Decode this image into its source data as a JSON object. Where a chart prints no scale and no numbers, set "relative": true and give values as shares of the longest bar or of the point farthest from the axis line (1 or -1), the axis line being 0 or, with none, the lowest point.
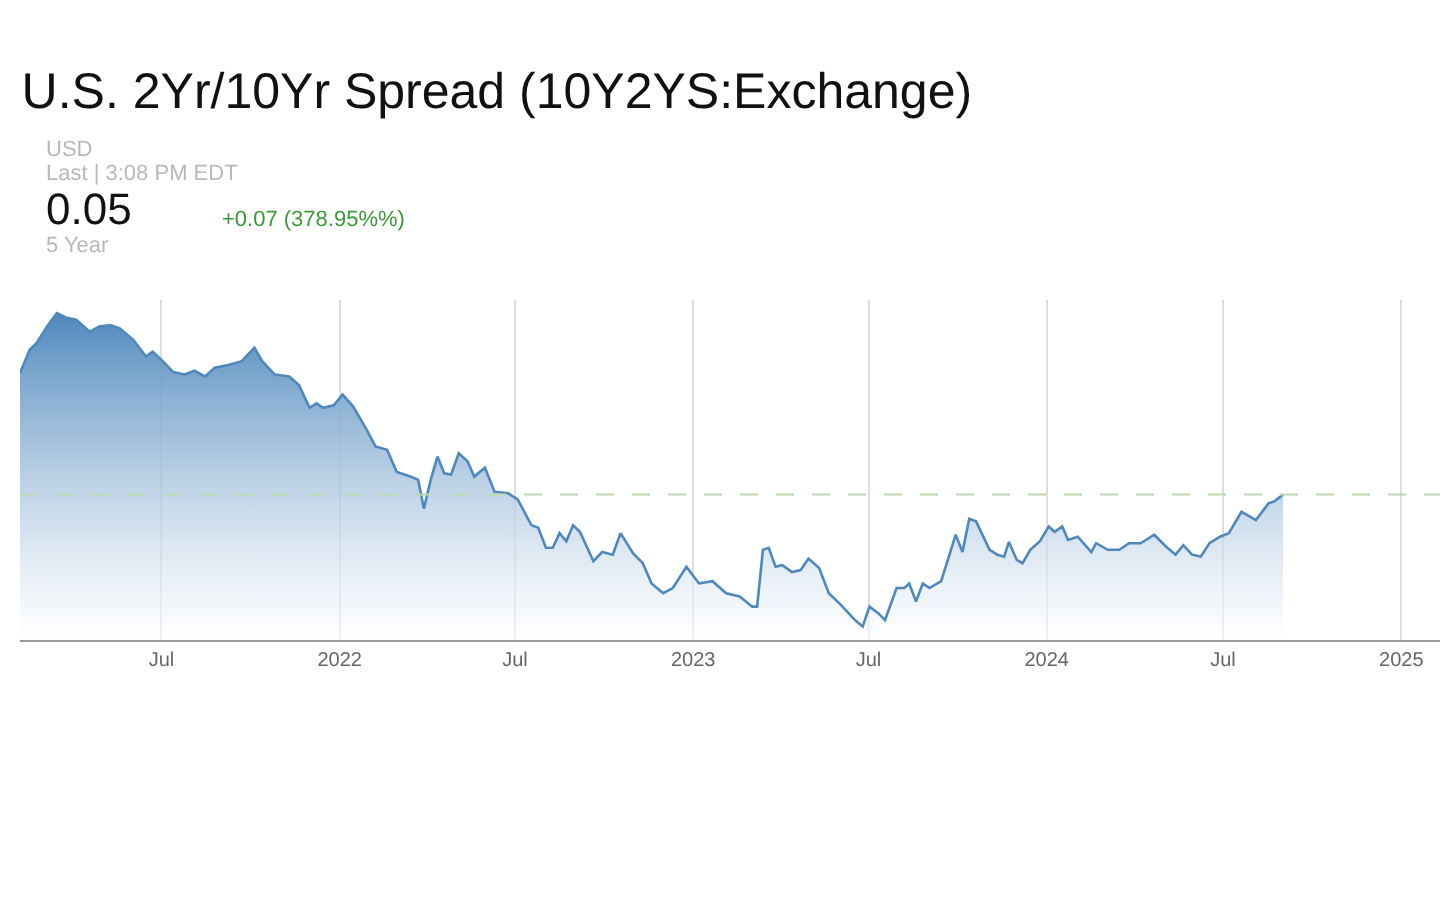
{
  "chart_data": {
    "type": "area",
    "title": "U.S. 2Yr/10Yr Spread (10Y2YS:Exchange)",
    "annotations": [
      "USD",
      "Last | 3:08 PM EDT",
      "0.05",
      "+0.07 (378.95%%)",
      "5 Year"
    ],
    "relative": true,
    "x": [
      "2021-02-05",
      "2021-02-15",
      "2021-02-22",
      "2021-03-05",
      "2021-03-15",
      "2021-03-25",
      "2021-04-04",
      "2021-04-18",
      "2021-04-28",
      "2021-05-09",
      "2021-05-19",
      "2021-06-02",
      "2021-06-15",
      "2021-06-22",
      "2021-07-01",
      "2021-07-13",
      "2021-07-25",
      "2021-08-04",
      "2021-08-15",
      "2021-08-25",
      "2021-09-08",
      "2021-09-22",
      "2021-10-05",
      "2021-10-13",
      "2021-10-26",
      "2021-11-10",
      "2021-11-20",
      "2021-12-01",
      "2021-12-08",
      "2021-12-15",
      "2021-12-26",
      "2022-01-04",
      "2022-01-15",
      "2022-01-29",
      "2022-02-07",
      "2022-02-19",
      "2022-03-01",
      "2022-03-15",
      "2022-03-23",
      "2022-03-29",
      "2022-04-05",
      "2022-04-12",
      "2022-04-19",
      "2022-04-26",
      "2022-05-04",
      "2022-05-13",
      "2022-05-20",
      "2022-05-31",
      "2022-06-10",
      "2022-06-24",
      "2022-07-04",
      "2022-07-18",
      "2022-07-25",
      "2022-08-02",
      "2022-08-09",
      "2022-08-16",
      "2022-08-23",
      "2022-08-30",
      "2022-09-06",
      "2022-09-20",
      "2022-09-29",
      "2022-10-10",
      "2022-10-18",
      "2022-10-31",
      "2022-11-10",
      "2022-11-19",
      "2022-12-01",
      "2022-12-11",
      "2022-12-25",
      "2023-01-07",
      "2023-01-21",
      "2023-02-04",
      "2023-02-18",
      "2023-03-03",
      "2023-03-08",
      "2023-03-14",
      "2023-03-20",
      "2023-03-27",
      "2023-04-03",
      "2023-04-13",
      "2023-04-22",
      "2023-04-30",
      "2023-05-11",
      "2023-05-21",
      "2023-06-03",
      "2023-06-17",
      "2023-06-25",
      "2023-07-02",
      "2023-07-11",
      "2023-07-18",
      "2023-07-30",
      "2023-08-07",
      "2023-08-12",
      "2023-08-19",
      "2023-08-26",
      "2023-09-02",
      "2023-09-14",
      "2023-09-22",
      "2023-09-29",
      "2023-10-06",
      "2023-10-13",
      "2023-10-20",
      "2023-11-03",
      "2023-11-11",
      "2023-11-18",
      "2023-11-23",
      "2023-12-01",
      "2023-12-07",
      "2023-12-15",
      "2023-12-25",
      "2024-01-03",
      "2024-01-09",
      "2024-01-17",
      "2024-01-23",
      "2024-02-02",
      "2024-02-16",
      "2024-02-21",
      "2024-03-04",
      "2024-03-16",
      "2024-03-26",
      "2024-04-07",
      "2024-04-21",
      "2024-05-03",
      "2024-05-13",
      "2024-05-21",
      "2024-05-30",
      "2024-06-08",
      "2024-06-17",
      "2024-06-28",
      "2024-07-07",
      "2024-07-20",
      "2024-08-04",
      "2024-08-17",
      "2024-08-23",
      "2024-09-01"
    ],
    "series": [
      {
        "color": "#4f88bd",
        "values": [
          0.816,
          0.888,
          0.908,
          0.959,
          1.0,
          0.986,
          0.98,
          0.943,
          0.959,
          0.963,
          0.953,
          0.918,
          0.867,
          0.882,
          0.857,
          0.82,
          0.812,
          0.824,
          0.806,
          0.833,
          0.841,
          0.853,
          0.894,
          0.853,
          0.812,
          0.806,
          0.78,
          0.71,
          0.724,
          0.71,
          0.718,
          0.751,
          0.714,
          0.643,
          0.592,
          0.582,
          0.514,
          0.5,
          0.49,
          0.402,
          0.49,
          0.561,
          0.51,
          0.506,
          0.571,
          0.547,
          0.5,
          0.527,
          0.453,
          0.449,
          0.429,
          0.351,
          0.343,
          0.282,
          0.282,
          0.327,
          0.302,
          0.351,
          0.331,
          0.241,
          0.269,
          0.261,
          0.327,
          0.265,
          0.235,
          0.173,
          0.143,
          0.159,
          0.224,
          0.173,
          0.18,
          0.143,
          0.133,
          0.102,
          0.102,
          0.276,
          0.282,
          0.224,
          0.229,
          0.208,
          0.214,
          0.249,
          0.22,
          0.143,
          0.106,
          0.061,
          0.041,
          0.102,
          0.082,
          0.061,
          0.159,
          0.159,
          0.173,
          0.118,
          0.173,
          0.159,
          0.18,
          0.255,
          0.322,
          0.269,
          0.371,
          0.363,
          0.276,
          0.261,
          0.255,
          0.3,
          0.245,
          0.235,
          0.276,
          0.302,
          0.347,
          0.331,
          0.347,
          0.306,
          0.316,
          0.269,
          0.296,
          0.276,
          0.276,
          0.296,
          0.296,
          0.322,
          0.286,
          0.261,
          0.29,
          0.261,
          0.255,
          0.296,
          0.316,
          0.327,
          0.392,
          0.367,
          0.418,
          0.424,
          0.445
        ]
      }
    ],
    "xlim": [
      "2021-02-05",
      "2025-02-10"
    ],
    "xticks": [
      {
        "value": "2021-07-01",
        "label": "Jul"
      },
      {
        "value": "2022-01-01",
        "label": "2022"
      },
      {
        "value": "2022-07-01",
        "label": "Jul"
      },
      {
        "value": "2023-01-01",
        "label": "2023"
      },
      {
        "value": "2023-07-01",
        "label": "Jul"
      },
      {
        "value": "2024-01-01",
        "label": "2024"
      },
      {
        "value": "2024-07-01",
        "label": "Jul"
      },
      {
        "value": "2025-01-01",
        "label": "2025"
      }
    ],
    "ref_lines": [
      {
        "axis": "y",
        "value": 0.445,
        "color": "#b9d9b0",
        "line_style": "dashed"
      }
    ],
    "grid": "x"
  }
}
